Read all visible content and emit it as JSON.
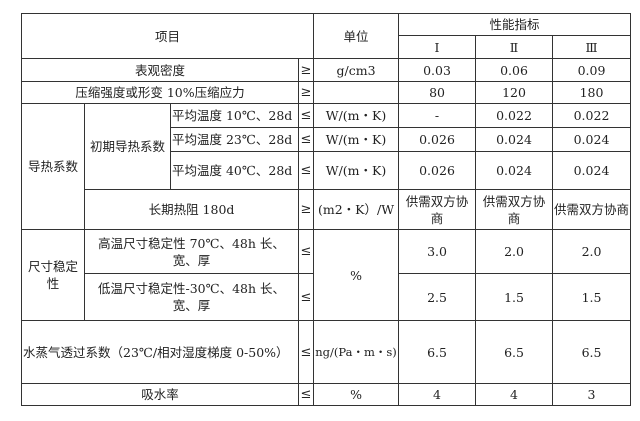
{
  "header": {
    "item": "项目",
    "unit": "单位",
    "perf": "性能指标",
    "grades": [
      "Ⅰ",
      "Ⅱ",
      "Ⅲ"
    ]
  },
  "rows": {
    "density": {
      "label": "表观密度",
      "sym": "≥",
      "unit": "g/cm3",
      "values": [
        "0.03",
        "0.06",
        "0.09"
      ]
    },
    "compress": {
      "label": "压缩强度或形变 10%压缩应力",
      "sym": "≥",
      "unit": "",
      "values": [
        "80",
        "120",
        "180"
      ]
    },
    "thermal": {
      "group": "导热系数",
      "initial": "初期导热系数",
      "t10": {
        "label": "平均温度 10℃、28d",
        "sym": "≤",
        "unit": "W/(m・K)",
        "values": [
          "-",
          "0.022",
          "0.022"
        ]
      },
      "t23": {
        "label": "平均温度 23℃、28d",
        "sym": "≤",
        "unit": "W/(m・K)",
        "values": [
          "0.026",
          "0.024",
          "0.024"
        ]
      },
      "t40": {
        "label": "平均温度 40℃、28d",
        "sym": "≤",
        "unit": "W/(m・K)",
        "values": [
          "0.026",
          "0.024",
          "0.024"
        ]
      },
      "longterm": {
        "label": "长期热阻 180d",
        "sym": "≥",
        "unit": "(m2・K）/W",
        "values": [
          "供需双方协商",
          "供需双方协商",
          "供需双方协商"
        ]
      }
    },
    "dimension": {
      "group": "尺寸稳定性",
      "unit": "%",
      "high": {
        "label": "高温尺寸稳定性 70℃、48h 长、宽、厚",
        "sym": "≤",
        "values": [
          "3.0",
          "2.0",
          "2.0"
        ]
      },
      "low": {
        "label": "低温尺寸稳定性-30℃、48h 长、宽、厚",
        "sym": "≤",
        "values": [
          "2.5",
          "1.5",
          "1.5"
        ]
      }
    },
    "vapor": {
      "label": "水蒸气透过系数（23℃/相对湿度梯度 0-50%）",
      "sym": "≤",
      "unit": "ng/(Pa・m・s)",
      "values": [
        "6.5",
        "6.5",
        "6.5"
      ]
    },
    "absorb": {
      "label": "吸水率",
      "sym": "≤",
      "unit": "%",
      "values": [
        "4",
        "4",
        "3"
      ]
    }
  }
}
